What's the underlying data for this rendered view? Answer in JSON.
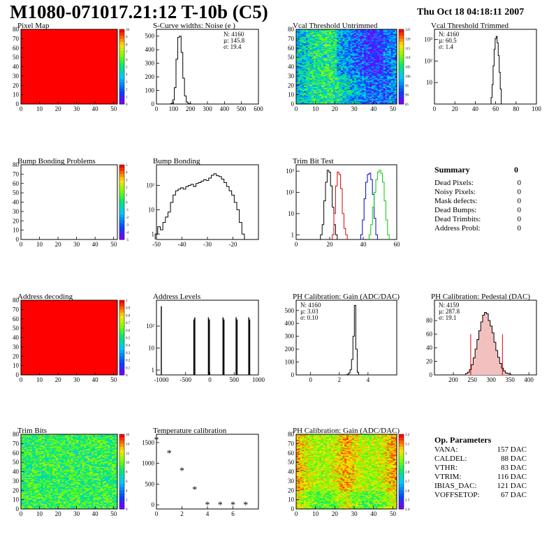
{
  "header": {
    "title": "M1080-071017.21:12 T-10b (C5)",
    "date": "Thu Oct 18 04:18:11 2007"
  },
  "colors": {
    "red_fill": "#ff0000",
    "hist_line": "#000000",
    "trim_red": "#dd0000",
    "trim_blue": "#0000cc",
    "trim_green": "#00cc00",
    "stat_red": "#dd0000",
    "pedestal_fill": "#f3c0c0"
  },
  "summary": {
    "title": "Summary",
    "title_value": "0",
    "rows": [
      {
        "label": "Dead Pixels:",
        "value": "0"
      },
      {
        "label": "Noisy Pixels:",
        "value": "0"
      },
      {
        "label": "Mask defects:",
        "value": "0"
      },
      {
        "label": "Dead Bumps:",
        "value": "0"
      },
      {
        "label": "Dead Trimbits:",
        "value": "0"
      },
      {
        "label": "Address Probl:",
        "value": "0"
      }
    ]
  },
  "op_params": {
    "title": "Op. Parameters",
    "rows": [
      {
        "label": "VANA:",
        "value": "157 DAC"
      },
      {
        "label": "CALDEL:",
        "value": "88 DAC"
      },
      {
        "label": "VTHR:",
        "value": "83 DAC"
      },
      {
        "label": "VTRIM:",
        "value": "116 DAC"
      },
      {
        "label": "IBIAS_DAC:",
        "value": "121 DAC"
      },
      {
        "label": "VOFFSETOP:",
        "value": "67 DAC"
      }
    ]
  },
  "chart_data": [
    {
      "id": "pixel-map",
      "type": "heatmap",
      "title": "Pixel Map",
      "xlim": [
        0,
        52
      ],
      "ylim": [
        0,
        80
      ],
      "xticks": [
        0,
        10,
        20,
        30,
        40,
        50
      ],
      "yticks": [
        0,
        10,
        20,
        30,
        40,
        50,
        60,
        70,
        80
      ],
      "fill": "uniform-red",
      "palette_ticks": [
        "10",
        "9",
        "8",
        "7",
        "6",
        "5",
        "4",
        "3",
        "2",
        "1",
        "0"
      ]
    },
    {
      "id": "scurve-noise",
      "type": "line",
      "title": "S-Curve widths: Noise (e )",
      "xlim": [
        0,
        600
      ],
      "ylim": [
        0,
        550
      ],
      "xticks": [
        0,
        100,
        200,
        300,
        400,
        500,
        600
      ],
      "yticks": [
        0,
        100,
        200,
        300,
        400,
        500
      ],
      "stats": [
        "N: 4160",
        "µ: 145.8",
        "σ: 19.4"
      ],
      "x": [
        80,
        90,
        100,
        110,
        120,
        130,
        140,
        150,
        160,
        170,
        180,
        190,
        200,
        210
      ],
      "values": [
        0,
        5,
        30,
        120,
        330,
        490,
        500,
        380,
        190,
        60,
        15,
        4,
        1,
        0
      ]
    },
    {
      "id": "vcal-untrimmed",
      "type": "heatmap",
      "title": "Vcal Threshold Untrimmed",
      "xlim": [
        0,
        52
      ],
      "ylim": [
        0,
        80
      ],
      "xticks": [
        0,
        10,
        20,
        30,
        40,
        50
      ],
      "yticks": [
        0,
        10,
        20,
        30,
        40,
        50,
        60,
        70,
        80
      ],
      "fill": "noise-cool",
      "palette_ticks": [
        "125",
        "120",
        "115",
        "110",
        "105",
        "100",
        "95",
        "90",
        "85"
      ]
    },
    {
      "id": "vcal-trimmed",
      "type": "line",
      "title": "Vcal Threshold Trimmed",
      "log": true,
      "xlim": [
        0,
        100
      ],
      "ylim": [
        1,
        3000
      ],
      "xticks": [
        0,
        20,
        40,
        60,
        80,
        100
      ],
      "yticks": [
        "10",
        "10²",
        "10³"
      ],
      "stats": [
        "N: 4160",
        "µ: 60.5",
        "σ: 1.4"
      ],
      "x": [
        55,
        56,
        57,
        58,
        59,
        60,
        61,
        62,
        63,
        64,
        65,
        66,
        67
      ],
      "values": [
        1,
        2,
        8,
        60,
        350,
        1100,
        1400,
        700,
        180,
        30,
        5,
        1,
        1
      ]
    },
    {
      "id": "bump-bonding-problems",
      "type": "heatmap",
      "title": "Bump Bonding Problems",
      "xlim": [
        0,
        52
      ],
      "ylim": [
        0,
        80
      ],
      "xticks": [
        0,
        10,
        20,
        30,
        40,
        50
      ],
      "yticks": [
        0,
        10,
        20,
        30,
        40,
        50,
        60,
        70,
        80
      ],
      "fill": "empty",
      "palette_ticks": [
        "5",
        "4",
        "3",
        "2",
        "1",
        "0",
        "-1",
        "-2",
        "-3",
        "-4",
        "-5"
      ]
    },
    {
      "id": "bump-bonding",
      "type": "line",
      "title": "Bump Bonding",
      "log": true,
      "xlim": [
        -50,
        -10
      ],
      "ylim": [
        0.6,
        700
      ],
      "xticks": [
        -50,
        -40,
        -30,
        -20
      ],
      "yticks": [
        "1",
        "10",
        "10²"
      ],
      "x": [
        -50,
        -49,
        -48,
        -47,
        -46,
        -45,
        -44,
        -43,
        -42,
        -41,
        -40,
        -39,
        -38,
        -37,
        -36,
        -35,
        -34,
        -33,
        -32,
        -31,
        -30,
        -29,
        -28,
        -27,
        -26,
        -25,
        -24,
        -23,
        -22,
        -21,
        -20,
        -19,
        -18,
        -17,
        -16
      ],
      "values": [
        1,
        2,
        1.5,
        3,
        5,
        8,
        20,
        40,
        60,
        70,
        80,
        70,
        90,
        100,
        110,
        90,
        120,
        130,
        150,
        170,
        160,
        200,
        260,
        300,
        250,
        230,
        180,
        130,
        90,
        60,
        40,
        20,
        10,
        3,
        1
      ]
    },
    {
      "id": "trim-bit-test",
      "type": "line",
      "title": "Trim Bit Test",
      "log": true,
      "xlim": [
        0,
        60
      ],
      "ylim": [
        0.6,
        2000
      ],
      "xticks": [
        0,
        20,
        40,
        60
      ],
      "yticks": [
        "1",
        "10",
        "10²",
        "10³"
      ],
      "series": [
        {
          "color": "black",
          "x": [
            15,
            16,
            17,
            18,
            19,
            20,
            21,
            22,
            23,
            24
          ],
          "values": [
            1,
            3,
            40,
            300,
            1100,
            900,
            200,
            20,
            3,
            1
          ]
        },
        {
          "color": "red",
          "x": [
            22,
            23,
            24,
            25,
            26,
            27,
            28,
            29,
            30
          ],
          "values": [
            1,
            10,
            200,
            900,
            700,
            150,
            10,
            2,
            1
          ]
        },
        {
          "color": "blue",
          "x": [
            39,
            40,
            41,
            42,
            43,
            44,
            45,
            46,
            47,
            48
          ],
          "values": [
            1,
            5,
            50,
            300,
            700,
            800,
            400,
            80,
            6,
            1
          ]
        },
        {
          "color": "green",
          "x": [
            44,
            45,
            46,
            47,
            48,
            49,
            50,
            51,
            52,
            53,
            54,
            55
          ],
          "values": [
            1,
            3,
            20,
            100,
            400,
            900,
            1100,
            800,
            300,
            40,
            5,
            1
          ]
        }
      ]
    },
    {
      "id": "address-decoding",
      "type": "heatmap",
      "title": "Address decoding",
      "xlim": [
        0,
        52
      ],
      "ylim": [
        0,
        80
      ],
      "xticks": [
        0,
        10,
        20,
        30,
        40,
        50
      ],
      "yticks": [
        0,
        10,
        20,
        30,
        40,
        50,
        60,
        70,
        80
      ],
      "fill": "uniform-red",
      "palette_ticks": [
        "1",
        "0.9",
        "0.8",
        "0.7",
        "0.6",
        "0.5",
        "0.4",
        "0.3",
        "0.2",
        "0.1",
        "0"
      ]
    },
    {
      "id": "address-levels",
      "type": "line",
      "title": "Address Levels",
      "log": true,
      "xlim": [
        -1100,
        1000
      ],
      "ylim": [
        0.6,
        1500
      ],
      "xticks": [
        -1000,
        -500,
        0,
        500,
        1000
      ],
      "yticks": [
        "1",
        "10",
        "10²"
      ],
      "spikes": [
        {
          "x": -1000,
          "value": 800
        },
        {
          "x": -330,
          "value": 200
        },
        {
          "x": -310,
          "value": 250
        },
        {
          "x": -30,
          "value": 250
        },
        {
          "x": -10,
          "value": 200
        },
        {
          "x": 270,
          "value": 250
        },
        {
          "x": 290,
          "value": 200
        },
        {
          "x": 540,
          "value": 250
        },
        {
          "x": 560,
          "value": 200
        },
        {
          "x": 800,
          "value": 250
        },
        {
          "x": 820,
          "value": 200
        }
      ]
    },
    {
      "id": "ph-gain",
      "type": "line",
      "title": "PH Calibration: Gain (ADC/DAC)",
      "xlim": [
        -1,
        6
      ],
      "ylim": [
        0,
        580
      ],
      "xticks": [
        0,
        2,
        4
      ],
      "yticks": [
        0,
        100,
        200,
        300,
        400,
        500
      ],
      "stats": [
        "N: 4160",
        "µ: 3.03",
        "σ: 0.10"
      ],
      "x": [
        2.5,
        2.6,
        2.7,
        2.8,
        2.9,
        3.0,
        3.1,
        3.2,
        3.3
      ],
      "values": [
        1,
        5,
        15,
        40,
        120,
        300,
        540,
        200,
        20
      ]
    },
    {
      "id": "ph-pedestal",
      "type": "line",
      "title": "PH Calibration: Pedestal (DAC)",
      "xlim": [
        150,
        420
      ],
      "ylim": [
        0,
        110
      ],
      "xticks": [
        200,
        250,
        300,
        350,
        400
      ],
      "yticks": [
        0,
        20,
        40,
        60,
        80
      ],
      "stats": [
        "N: 4159",
        "µ: 287.8",
        "σ: 19.1"
      ],
      "fit_range": [
        246,
        330
      ],
      "x": [
        235,
        240,
        245,
        250,
        255,
        260,
        265,
        270,
        275,
        280,
        285,
        290,
        295,
        300,
        305,
        310,
        315,
        320,
        325,
        330,
        335,
        340,
        345,
        350
      ],
      "values": [
        2,
        4,
        8,
        15,
        25,
        38,
        52,
        65,
        78,
        88,
        92,
        90,
        80,
        72,
        62,
        48,
        36,
        26,
        17,
        10,
        6,
        3,
        2,
        1
      ]
    },
    {
      "id": "trim-bits",
      "type": "heatmap",
      "title": "Trim Bits",
      "xlim": [
        0,
        52
      ],
      "ylim": [
        0,
        80
      ],
      "xticks": [
        0,
        10,
        20,
        30,
        40,
        50
      ],
      "yticks": [
        0,
        10,
        20,
        30,
        40,
        50,
        60,
        70,
        80
      ],
      "fill": "noise-green",
      "palette_ticks": [
        "16",
        "14",
        "12",
        "10",
        "8",
        "6",
        "4",
        "2",
        "0"
      ]
    },
    {
      "id": "temperature-calibration",
      "type": "scatter",
      "title": "Temperature calibration",
      "xlim": [
        0,
        8
      ],
      "ylim": [
        -100,
        1700
      ],
      "xticks": [
        0,
        2,
        4,
        6
      ],
      "yticks": [
        0,
        500,
        1000,
        1500
      ],
      "x": [
        0,
        1,
        2,
        3,
        4,
        5,
        6,
        7
      ],
      "values": [
        1560,
        1240,
        820,
        360,
        -10,
        -10,
        -10,
        -10
      ]
    },
    {
      "id": "ph-gain-map",
      "type": "heatmap",
      "title": "PH Calibration: Gain (ADC/DAC)",
      "xlim": [
        0,
        52
      ],
      "ylim": [
        0,
        80
      ],
      "xticks": [
        0,
        10,
        20,
        30,
        40,
        50
      ],
      "yticks": [
        0,
        10,
        20,
        30,
        40,
        50,
        60,
        70,
        80
      ],
      "fill": "noise-warm",
      "palette_ticks": [
        "3.2",
        "3.1",
        "3",
        "2.9",
        "2.8",
        "2.7",
        "2.6",
        "2.5",
        "2.4"
      ]
    }
  ]
}
